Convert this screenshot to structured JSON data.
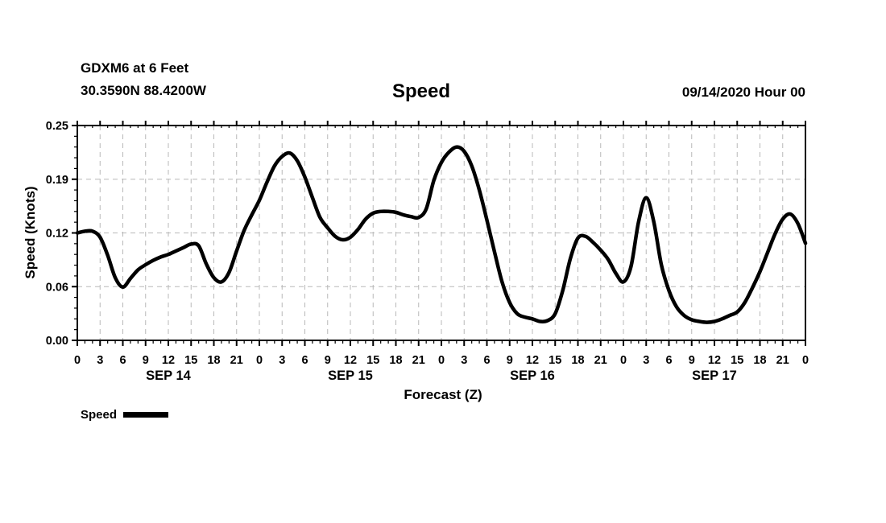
{
  "header": {
    "station_name": "GDXM6 at 6 Feet",
    "station_coords": "30.3590N 88.4200W",
    "title": "Speed",
    "run_label": "09/14/2020 Hour 00"
  },
  "axes": {
    "x_label": "Forecast (Z)",
    "y_label": "Speed (Knots)"
  },
  "legend": {
    "series_label": "Speed",
    "line_color": "#000000"
  },
  "colors": {
    "background": "#ffffff",
    "axis": "#000000",
    "grid": "#b8b8b8",
    "line": "#000000"
  },
  "chart_data": {
    "type": "line",
    "title": "Speed",
    "xlabel": "Forecast (Z)",
    "ylabel": "Speed (Knots)",
    "xlim": [
      0,
      96
    ],
    "ylim": [
      0,
      0.25
    ],
    "grid": "dashed",
    "legend_position": "bottom-left",
    "x_major_tick_hours": 3,
    "x_minor_tick_hours": 1,
    "hour_label_modulo": 24,
    "y_major_ticks": [
      0,
      0.0625,
      0.125,
      0.1875,
      0.25
    ],
    "y_tick_labels": [
      "0.00",
      "0.06",
      "0.12",
      "0.19",
      "0.25"
    ],
    "y_minor_tick_step": 0.0125,
    "day_labels": [
      {
        "label": "SEP 14",
        "hour": 12
      },
      {
        "label": "SEP 15",
        "hour": 36
      },
      {
        "label": "SEP 16",
        "hour": 60
      },
      {
        "label": "SEP 17",
        "hour": 84
      }
    ],
    "series": [
      {
        "name": "Speed",
        "color": "#000000",
        "x": [
          0,
          1,
          2,
          3,
          4,
          5,
          6,
          7,
          8,
          9,
          10,
          11,
          12,
          13,
          14,
          15,
          16,
          17,
          18,
          19,
          20,
          21,
          22,
          23,
          24,
          25,
          26,
          27,
          28,
          29,
          30,
          31,
          32,
          33,
          34,
          35,
          36,
          37,
          38,
          39,
          40,
          41,
          42,
          43,
          44,
          45,
          46,
          47,
          48,
          49,
          50,
          51,
          52,
          53,
          54,
          55,
          56,
          57,
          58,
          59,
          60,
          61,
          62,
          63,
          64,
          65,
          66,
          67,
          68,
          69,
          70,
          71,
          72,
          73,
          74,
          75,
          76,
          77,
          78,
          79,
          80,
          81,
          82,
          83,
          84,
          85,
          86,
          87,
          88,
          89,
          90,
          91,
          92,
          93,
          94,
          95,
          96
        ],
        "values": [
          0.125,
          0.127,
          0.127,
          0.12,
          0.099,
          0.073,
          0.062,
          0.072,
          0.082,
          0.088,
          0.093,
          0.097,
          0.1,
          0.104,
          0.108,
          0.112,
          0.11,
          0.089,
          0.073,
          0.068,
          0.079,
          0.104,
          0.128,
          0.146,
          0.163,
          0.184,
          0.203,
          0.214,
          0.218,
          0.209,
          0.19,
          0.166,
          0.143,
          0.131,
          0.121,
          0.117,
          0.12,
          0.129,
          0.141,
          0.148,
          0.15,
          0.15,
          0.149,
          0.146,
          0.144,
          0.143,
          0.153,
          0.186,
          0.207,
          0.219,
          0.225,
          0.22,
          0.203,
          0.175,
          0.14,
          0.103,
          0.068,
          0.044,
          0.031,
          0.027,
          0.025,
          0.022,
          0.023,
          0.031,
          0.058,
          0.095,
          0.119,
          0.121,
          0.114,
          0.105,
          0.094,
          0.078,
          0.068,
          0.086,
          0.138,
          0.166,
          0.138,
          0.088,
          0.058,
          0.039,
          0.029,
          0.024,
          0.022,
          0.021,
          0.022,
          0.025,
          0.029,
          0.033,
          0.044,
          0.061,
          0.08,
          0.102,
          0.124,
          0.141,
          0.147,
          0.136,
          0.113
        ]
      }
    ]
  }
}
